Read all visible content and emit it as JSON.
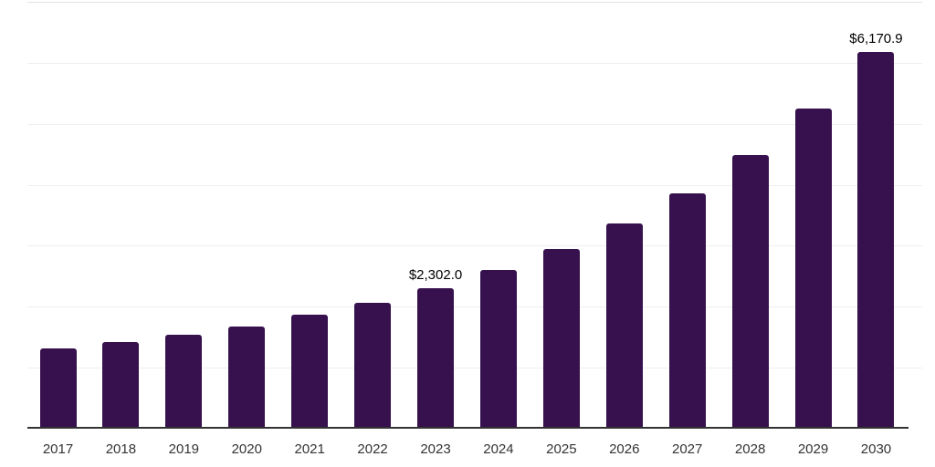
{
  "chart": {
    "background_color": "#ffffff",
    "bar_color": "#36114e",
    "axis_color": "#333333",
    "gridline_color": "#efefef",
    "tick_label_color": "#333333",
    "data_label_color": "#000000"
  },
  "chart_data": {
    "type": "bar",
    "title": "",
    "xlabel": "",
    "ylabel": "",
    "categories": [
      "2017",
      "2018",
      "2019",
      "2020",
      "2021",
      "2022",
      "2023",
      "2024",
      "2025",
      "2026",
      "2027",
      "2028",
      "2029",
      "2030"
    ],
    "values": [
      1310,
      1420,
      1536,
      1670,
      1870,
      2068,
      2302.0,
      2600,
      2950,
      3365,
      3862,
      4487,
      5250,
      6170.9
    ],
    "data_labels": {
      "2023": "$2,302.0",
      "2030": "$6,170.9"
    },
    "ylim": [
      0,
      7000
    ],
    "gridline_step": 1000,
    "grid": "horizontal",
    "legend_position": "none"
  }
}
